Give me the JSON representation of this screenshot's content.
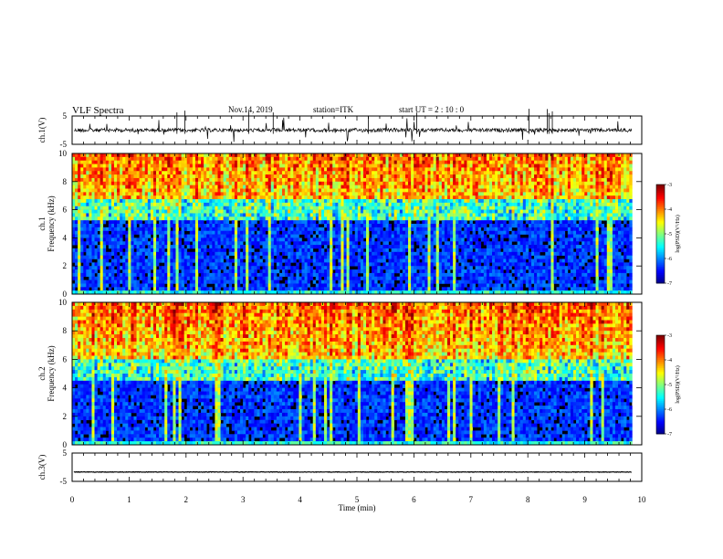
{
  "header": {
    "title": "VLF Spectra",
    "date": "Nov.14, 2019",
    "station": "station=ITK",
    "start": "start  UT =   2 : 10 : 0"
  },
  "chart_data": [
    {
      "type": "line",
      "name": "ch1-waveform",
      "ylabel": "ch.1(V)",
      "ylim": [
        -5,
        5
      ],
      "y_ticks": [
        "5",
        "-5"
      ],
      "xlim": [
        0,
        10
      ],
      "baseline": 0,
      "description_level": "noisy signal with impulsive spikes"
    },
    {
      "type": "heatmap",
      "name": "ch1-spectrogram",
      "ylabel": "ch.1\nFrequency  (kHz)",
      "ylim": [
        0,
        10
      ],
      "y_ticks": [
        "0",
        "2",
        "4",
        "6",
        "8",
        "10"
      ],
      "xlim": [
        0,
        9.83
      ],
      "colorbar": {
        "label": "log(PSD)(V²/Hz)",
        "range": [
          -7,
          -3
        ],
        "ticks": [
          "-3",
          "-4",
          "-5",
          "-6",
          "-7"
        ]
      }
    },
    {
      "type": "heatmap",
      "name": "ch2-spectrogram",
      "ylabel": "ch.2\nFrequency  (kHz)",
      "ylim": [
        0,
        10
      ],
      "y_ticks": [
        "0",
        "2",
        "4",
        "6",
        "8",
        "10"
      ],
      "xlim": [
        0,
        9.83
      ],
      "colorbar": {
        "label": "log(PSD)(V²/Hz)",
        "range": [
          -7,
          -3
        ],
        "ticks": [
          "-3",
          "-4",
          "-5",
          "-6",
          "-7"
        ]
      }
    },
    {
      "type": "line",
      "name": "ch3-waveform",
      "ylabel": "ch.3(V)",
      "ylim": [
        -5,
        5
      ],
      "y_ticks": [
        "5",
        "-5"
      ],
      "xlim": [
        0,
        10
      ],
      "baseline": -1.7,
      "description_level": "flat line"
    }
  ],
  "xaxis": {
    "label": "Time  (min)",
    "ticks": [
      "0",
      "1",
      "2",
      "3",
      "4",
      "5",
      "6",
      "7",
      "8",
      "9",
      "10"
    ],
    "range": [
      0,
      10
    ]
  },
  "colors": {
    "jet": [
      "#000080",
      "#0000ff",
      "#0080ff",
      "#00ffff",
      "#80ff80",
      "#ffff00",
      "#ff8000",
      "#ff0000",
      "#800000"
    ]
  }
}
